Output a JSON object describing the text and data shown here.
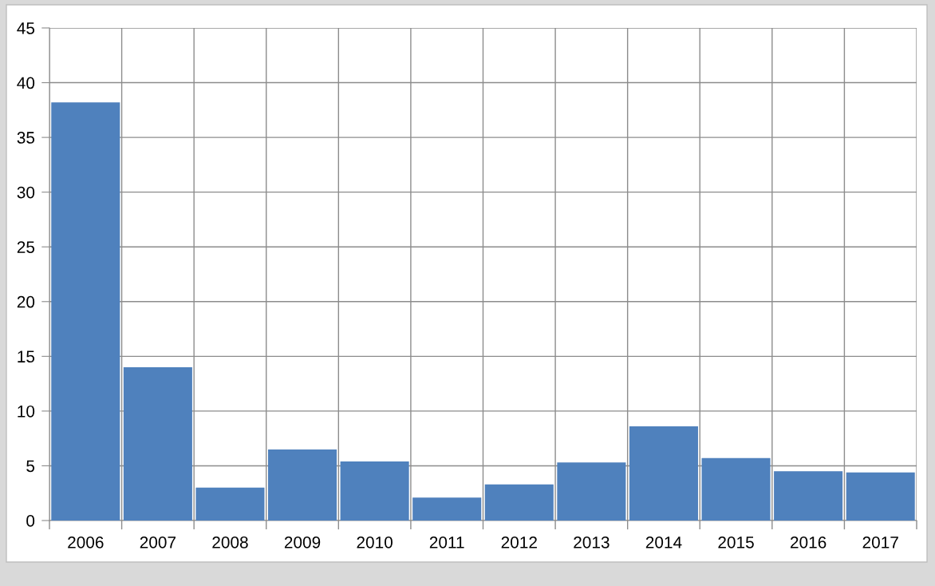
{
  "chart_data": {
    "type": "bar",
    "categories": [
      "2006",
      "2007",
      "2008",
      "2009",
      "2010",
      "2011",
      "2012",
      "2013",
      "2014",
      "2015",
      "2016",
      "2017"
    ],
    "values": [
      38.2,
      14.0,
      3.0,
      6.5,
      5.4,
      2.1,
      3.3,
      5.3,
      8.6,
      5.7,
      4.5,
      4.4
    ],
    "color": "#4f81bd",
    "ylim": [
      0,
      45
    ],
    "yticks": [
      0,
      5,
      10,
      15,
      20,
      25,
      30,
      35,
      40,
      45
    ],
    "grid": true
  }
}
